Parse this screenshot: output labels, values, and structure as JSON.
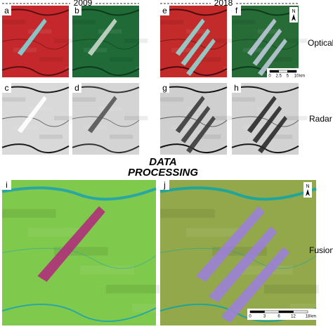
{
  "header": {
    "years": [
      "2009",
      "2018"
    ]
  },
  "panels": [
    {
      "label": "a"
    },
    {
      "label": "b"
    },
    {
      "label": "c"
    },
    {
      "label": "d"
    },
    {
      "label": "e"
    },
    {
      "label": "f"
    },
    {
      "label": "g"
    },
    {
      "label": "h"
    },
    {
      "label": "i"
    },
    {
      "label": "j"
    }
  ],
  "row_labels": [
    "Optical",
    "Radar",
    "Fusion"
  ],
  "center_label": [
    "DATA",
    "PROCESSING"
  ],
  "north_arrows": [
    "N",
    "N"
  ],
  "scale_bars": [
    {
      "ticks": [
        "0",
        "2.5",
        "5",
        "10"
      ],
      "unit": "km"
    },
    {
      "ticks": [
        "0",
        "3",
        "6",
        "12",
        "18"
      ],
      "unit": "km"
    }
  ]
}
